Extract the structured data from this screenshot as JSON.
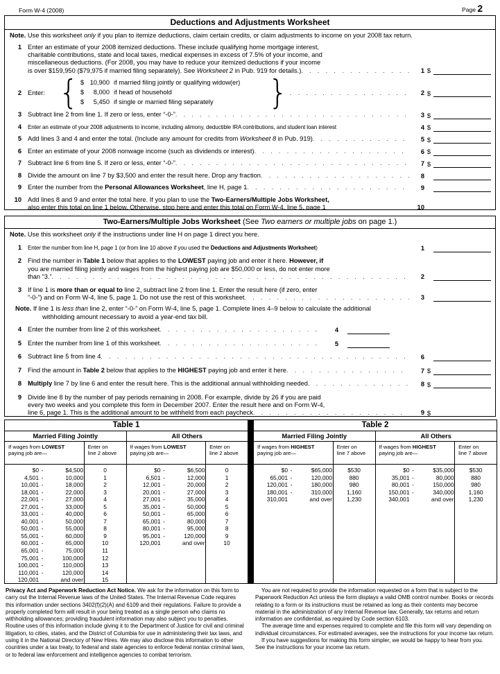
{
  "page": {
    "form_id": "Form W-4 (2008)",
    "page_label": "Page",
    "page_number": "2"
  },
  "ws1": {
    "title": "Deductions and Adjustments Worksheet",
    "note_html": "<b>Note.</b> Use this worksheet <i>only</i> if you plan to itemize deductions, claim certain credits, or claim adjustments to income on your 2008 tax return.",
    "l1": {
      "no": "1",
      "html": "Enter an estimate of your 2008 itemized deductions. These include qualifying home mortgage interest,<br>charitable contributions, state and local taxes, medical expenses in excess of 7.5% of your income, and<br>miscellaneous deductions. (For 2008, you may have to reduce your itemized deductions if your income<br>is over $159,950 ($79,975 if married filing separately). See <i>Worksheet 2</i> in Pub. 919 for details.)",
      "cur": "$"
    },
    "l2": {
      "no": "2",
      "label": "Enter:",
      "brace_open": "{",
      "brace_close": "}",
      "cur": "$",
      "options": [
        {
          "cur": "$",
          "val": "10,900",
          "rest": "if married filing jointly or qualifying widow(er)"
        },
        {
          "cur": "$",
          "val": "8,000",
          "rest": "if head of household"
        },
        {
          "cur": "$",
          "val": "5,450",
          "rest": "if single or married filing separately"
        }
      ]
    },
    "l3": {
      "no": "3",
      "html": "Subtract line 2 from line 1. If zero or less, enter “-0-”",
      "cur": "$"
    },
    "l4": {
      "no": "4",
      "html": "Enter an estimate of your 2008 adjustments to income, including alimony, deductible IRA contributions, and student loan interest",
      "cur": "$"
    },
    "l5": {
      "no": "5",
      "html": "Add lines 3 and 4 and enter the total. (Include any amount for credits from <i>Worksheet 8</i> in Pub. 919)",
      "cur": "$"
    },
    "l6": {
      "no": "6",
      "html": "Enter an estimate of your 2008 nonwage income (such as dividends or interest)",
      "cur": "$"
    },
    "l7": {
      "no": "7",
      "html": "Subtract line 6 from line 5. If zero or less, enter “-0-”",
      "cur": "$"
    },
    "l8": {
      "no": "8",
      "html": "Divide the amount on line 7 by $3,500 and enter the result here. Drop any fraction",
      "cur": ""
    },
    "l9": {
      "no": "9",
      "html": "Enter the number from the <b>Personal Allowances Worksheet</b>, line H, page 1",
      "cur": ""
    },
    "l10": {
      "no": "10",
      "html": "Add lines 8 and 9 and enter the total here. If you plan to use the <b>Two-Earners/Multiple Jobs Worksheet,</b><br>also enter this total on line 1 below. Otherwise, stop here and enter this total on Form W-4, line 5, page 1",
      "cur": ""
    }
  },
  "ws2": {
    "title_bold": "Two-Earners/Multiple Jobs Worksheet",
    "title_rest_html": " (See <i>Two earners or multiple jobs</i> on page 1.)",
    "note_html": "<b>Note.</b> Use this worksheet <i>only</i> if the instructions under line H on page 1 direct you here.",
    "l1": {
      "no": "1",
      "html": "Enter the number from line H, page 1 (or from line 10 above if you used the <b>Deductions and Adjustments Worksheet</b>)",
      "cur": ""
    },
    "l2": {
      "no": "2",
      "html": "Find the number in <b>Table 1</b> below that applies to the <b>LOWEST</b> paying job and enter it here. <b>However, if</b><br>you are married filing jointly and wages from the highest paying job are $50,000 or less, do not enter more<br>than “3.”",
      "cur": ""
    },
    "l3": {
      "no": "3",
      "html": "If line 1 is <b>more than or equal to</b> line 2, subtract line 2 from line 1. Enter the result here (if zero, enter<br>“-0-”) and on Form W-4, line 5, page 1. Do not use the rest of this worksheet",
      "cur": ""
    },
    "note2_html": "<b>Note.</b> If line 1 is <i>less than</i> line 2, enter “-0-” on Form W-4, line 5, page 1. Complete lines 4–9 below to calculate the additional<br>withholding amount necessary to avoid a year-end tax bill.",
    "l4": {
      "no": "4",
      "html": "Enter the number from line 2 of this worksheet",
      "cur": ""
    },
    "l5": {
      "no": "5",
      "html": "Enter the number from line 1 of this worksheet",
      "cur": ""
    },
    "l6": {
      "no": "6",
      "html": "Subtract line 5 from line 4",
      "cur": ""
    },
    "l7": {
      "no": "7",
      "html": "Find the amount in <b>Table 2</b> below that applies to the <b>HIGHEST</b> paying job and enter it here",
      "cur": "$"
    },
    "l8": {
      "no": "8",
      "html": "<b>Multiply</b> line 7 by line 6 and enter the result here. This is the additional annual withholding needed",
      "cur": "$"
    },
    "l9": {
      "no": "9",
      "html": "Divide line 8 by the number of pay periods remaining in 2008. For example, divide by 26 if you are paid<br>every two weeks and you complete this form in December 2007. Enter the result here and on Form W-4,<br>line 6, page 1. This is the additional amount to be withheld from each paycheck",
      "cur": "$"
    }
  },
  "table1": {
    "title": "Table 1",
    "mfj": {
      "name": "Married Filing Jointly",
      "wage_header_html": "If wages from <b>LOWEST</b><br>paying job are—",
      "enter_header_html": "Enter on<br>line 2 above",
      "rows": [
        {
          "lo": "$0",
          "sep": "-",
          "hi": "$4,500",
          "val": "0"
        },
        {
          "lo": "4,501",
          "sep": "-",
          "hi": "10,000",
          "val": "1"
        },
        {
          "lo": "10,001",
          "sep": "-",
          "hi": "18,000",
          "val": "2"
        },
        {
          "lo": "18,001",
          "sep": "-",
          "hi": "22,000",
          "val": "3"
        },
        {
          "lo": "22,001",
          "sep": "-",
          "hi": "27,000",
          "val": "4"
        },
        {
          "lo": "27,001",
          "sep": "-",
          "hi": "33,000",
          "val": "5"
        },
        {
          "lo": "33,001",
          "sep": "-",
          "hi": "40,000",
          "val": "6"
        },
        {
          "lo": "40,001",
          "sep": "-",
          "hi": "50,000",
          "val": "7"
        },
        {
          "lo": "50,001",
          "sep": "-",
          "hi": "55,000",
          "val": "8"
        },
        {
          "lo": "55,001",
          "sep": "-",
          "hi": "60,000",
          "val": "9"
        },
        {
          "lo": "60,001",
          "sep": "-",
          "hi": "65,000",
          "val": "10"
        },
        {
          "lo": "65,001",
          "sep": "-",
          "hi": "75,000",
          "val": "11"
        },
        {
          "lo": "75,001",
          "sep": "-",
          "hi": "100,000",
          "val": "12"
        },
        {
          "lo": "100,001",
          "sep": "-",
          "hi": "110,000",
          "val": "13"
        },
        {
          "lo": "110,001",
          "sep": "-",
          "hi": "120,000",
          "val": "14"
        },
        {
          "lo": "120,001",
          "sep": "",
          "hi": "and over",
          "val": "15"
        }
      ]
    },
    "others": {
      "name": "All Others",
      "wage_header_html": "If wages from <b>LOWEST</b><br>paying job are—",
      "enter_header_html": "Enter on<br>line 2 above",
      "rows": [
        {
          "lo": "$0",
          "sep": "-",
          "hi": "$6,500",
          "val": "0"
        },
        {
          "lo": "6,501",
          "sep": "-",
          "hi": "12,000",
          "val": "1"
        },
        {
          "lo": "12,001",
          "sep": "-",
          "hi": "20,000",
          "val": "2"
        },
        {
          "lo": "20,001",
          "sep": "-",
          "hi": "27,000",
          "val": "3"
        },
        {
          "lo": "27,001",
          "sep": "-",
          "hi": "35,000",
          "val": "4"
        },
        {
          "lo": "35,001",
          "sep": "-",
          "hi": "50,000",
          "val": "5"
        },
        {
          "lo": "50,001",
          "sep": "-",
          "hi": "65,000",
          "val": "6"
        },
        {
          "lo": "65,001",
          "sep": "-",
          "hi": "80,000",
          "val": "7"
        },
        {
          "lo": "80,001",
          "sep": "-",
          "hi": "95,000",
          "val": "8"
        },
        {
          "lo": "95,001",
          "sep": "-",
          "hi": "120,000",
          "val": "9"
        },
        {
          "lo": "120,001",
          "sep": "",
          "hi": "and over",
          "val": "10"
        }
      ]
    }
  },
  "table2": {
    "title": "Table 2",
    "mfj": {
      "name": "Married Filing Jointly",
      "wage_header_html": "If wages from <b>HIGHEST</b><br>paying job are—",
      "enter_header_html": "Enter on<br>line 7 above",
      "rows": [
        {
          "lo": "$0",
          "sep": "-",
          "hi": "$65,000",
          "val": "$530"
        },
        {
          "lo": "65,001",
          "sep": "-",
          "hi": "120,000",
          "val": "880"
        },
        {
          "lo": "120,001",
          "sep": "-",
          "hi": "180,000",
          "val": "980"
        },
        {
          "lo": "180,001",
          "sep": "-",
          "hi": "310,000",
          "val": "1,160"
        },
        {
          "lo": "310,001",
          "sep": "",
          "hi": "and over",
          "val": "1,230"
        }
      ]
    },
    "others": {
      "name": "All Others",
      "wage_header_html": "If wages from <b>HIGHEST</b><br>paying job are—",
      "enter_header_html": "Enter on<br>line 7 above",
      "rows": [
        {
          "lo": "$0",
          "sep": "-",
          "hi": "$35,000",
          "val": "$530"
        },
        {
          "lo": "35,001",
          "sep": "-",
          "hi": "80,000",
          "val": "880"
        },
        {
          "lo": "80,001",
          "sep": "-",
          "hi": "150,000",
          "val": "980"
        },
        {
          "lo": "150,001",
          "sep": "-",
          "hi": "340,000",
          "val": "1,160"
        },
        {
          "lo": "340,001",
          "sep": "",
          "hi": "and over",
          "val": "1,230"
        }
      ]
    }
  },
  "footer": {
    "privacy_html": "<b>Privacy Act and Paperwork Reduction Act Notice.</b> We ask for the information on this form to carry out the Internal Revenue laws of the United States. The Internal Revenue Code requires this information under sections 3402(f)(2)(A) and 6109 and their regulations. Failure to provide a properly completed form will result in your being treated as a single person who claims no withholding allowances; providing fraudulent information may also subject you to penalties. Routine uses of this information include giving it to the Department of Justice for civil and criminal litigation, to cities, states, and the District of Columbia for use in administering their tax laws, and using it in the National Directory of New Hires. We may also disclose this information to other countries under a tax treaty, to federal and state agencies to enforce federal nontax criminal laws, or to federal law enforcement and intelligence agencies to combat terrorism.",
    "paperwork_paras": [
      "You are not required to provide the information requested on a form that is subject to the Paperwork Reduction Act unless the form displays a valid OMB control number. Books or records relating to a form or its instructions must be retained as long as their contents may become material in the administration of any Internal Revenue law. Generally, tax returns and return information are confidential, as required by Code section 6103.",
      "The average time and expenses required to complete and file this form will vary depending on individual circumstances. For estimated averages, see the instructions for your income tax return.",
      "If you have suggestions for making this form simpler, we would be happy to hear from you. See the instructions for your income tax return."
    ]
  }
}
